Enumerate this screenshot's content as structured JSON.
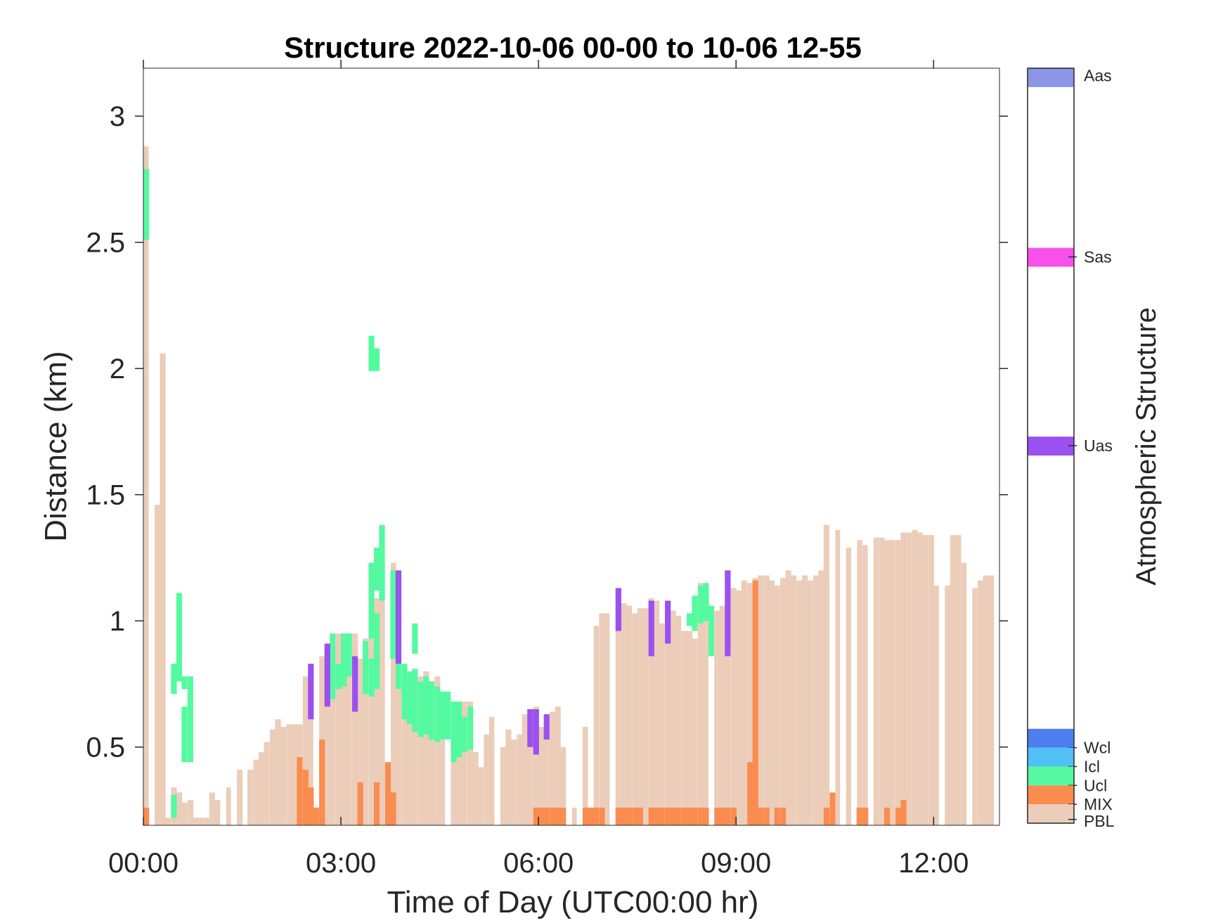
{
  "chart_data": {
    "type": "heatmap",
    "title": "Structure 2022-10-06 00-00 to 10-06 12-55",
    "xlabel": "Time of Day (UTC00:00 hr)",
    "ylabel": "Distance (km)",
    "colorbar_label": "Atmospheric Structure",
    "xlim": [
      0,
      13
    ],
    "ylim": [
      0.19,
      3.19
    ],
    "x_ticks": [
      0,
      3,
      6,
      9,
      12
    ],
    "x_tick_labels": [
      "00:00",
      "03:00",
      "06:00",
      "09:00",
      "12:00"
    ],
    "y_ticks": [
      0.5,
      1,
      1.5,
      2,
      2.5,
      3
    ],
    "y_tick_labels": [
      "0.5",
      "1",
      "1.5",
      "2",
      "2.5",
      "3"
    ],
    "grid": false,
    "legend": "colorbar-right",
    "colorbar": [
      {
        "label": "Aas",
        "color": "#8c96e6"
      },
      {
        "label": "Sas",
        "color": "#fa50eb"
      },
      {
        "label": "Uas",
        "color": "#9b50f0"
      },
      {
        "label": "Wcl",
        "color": "#4e7ef0"
      },
      {
        "label": "Icl",
        "color": "#50c0f5"
      },
      {
        "label": "Ucl",
        "color": "#55faa0"
      },
      {
        "label": "MIX",
        "color": "#fa8c50"
      },
      {
        "label": "PBL",
        "color": "#ebcdb9"
      }
    ],
    "bin_width_hr": 0.0833,
    "pbl_top_km": [
      [
        0.0,
        2.88
      ],
      [
        0.17,
        1.46
      ],
      [
        0.25,
        2.06
      ],
      [
        0.33,
        0.22
      ],
      [
        0.42,
        0.34
      ],
      [
        0.5,
        0.32
      ],
      [
        0.58,
        0.28
      ],
      [
        0.67,
        0.29
      ],
      [
        0.75,
        0.22
      ],
      [
        0.83,
        0.22
      ],
      [
        0.92,
        0.22
      ],
      [
        1.0,
        0.32
      ],
      [
        1.08,
        0.29
      ],
      [
        1.25,
        0.34
      ],
      [
        1.42,
        0.41
      ],
      [
        1.58,
        0.41
      ],
      [
        1.67,
        0.45
      ],
      [
        1.75,
        0.48
      ],
      [
        1.83,
        0.52
      ],
      [
        1.92,
        0.57
      ],
      [
        2.0,
        0.61
      ],
      [
        2.08,
        0.58
      ],
      [
        2.17,
        0.59
      ],
      [
        2.25,
        0.59
      ],
      [
        2.33,
        0.59
      ],
      [
        2.42,
        0.78
      ],
      [
        2.5,
        0.8
      ],
      [
        2.58,
        0.75
      ],
      [
        2.67,
        0.86
      ],
      [
        2.75,
        0.83
      ],
      [
        2.83,
        0.91
      ],
      [
        2.92,
        0.95
      ],
      [
        3.0,
        0.9
      ],
      [
        3.08,
        0.95
      ],
      [
        3.17,
        0.95
      ],
      [
        3.25,
        0.85
      ],
      [
        3.33,
        0.93
      ],
      [
        3.42,
        1.02
      ],
      [
        3.5,
        1.09
      ],
      [
        3.58,
        1.38
      ],
      [
        3.67,
        0.93
      ],
      [
        3.75,
        1.23
      ],
      [
        3.83,
        0.76
      ],
      [
        3.92,
        0.79
      ],
      [
        4.0,
        0.8
      ],
      [
        4.08,
        0.77
      ],
      [
        4.17,
        0.78
      ],
      [
        4.25,
        0.8
      ],
      [
        4.33,
        0.74
      ],
      [
        4.42,
        0.78
      ],
      [
        4.5,
        0.72
      ],
      [
        4.58,
        0.68
      ],
      [
        4.67,
        0.68
      ],
      [
        4.75,
        0.68
      ],
      [
        4.83,
        0.68
      ],
      [
        4.92,
        0.68
      ],
      [
        5.0,
        0.48
      ],
      [
        5.08,
        0.42
      ],
      [
        5.17,
        0.55
      ],
      [
        5.25,
        0.62
      ],
      [
        5.33,
        0.6
      ],
      [
        5.42,
        0.5
      ],
      [
        5.5,
        0.57
      ],
      [
        5.58,
        0.53
      ],
      [
        5.67,
        0.55
      ],
      [
        5.75,
        0.63
      ],
      [
        5.83,
        0.65
      ],
      [
        5.92,
        0.66
      ],
      [
        6.0,
        0.58
      ],
      [
        6.08,
        0.62
      ],
      [
        6.17,
        0.64
      ],
      [
        6.25,
        0.66
      ],
      [
        6.33,
        0.5
      ],
      [
        6.5,
        0.26
      ],
      [
        6.67,
        0.58
      ],
      [
        6.83,
        0.98
      ],
      [
        6.92,
        1.03
      ],
      [
        7.0,
        1.03
      ],
      [
        7.17,
        1.13
      ],
      [
        7.25,
        1.07
      ],
      [
        7.33,
        1.06
      ],
      [
        7.42,
        1.03
      ],
      [
        7.5,
        1.05
      ],
      [
        7.58,
        1.05
      ],
      [
        7.67,
        1.09
      ],
      [
        7.75,
        1.08
      ],
      [
        7.83,
        0.99
      ],
      [
        7.92,
        1.08
      ],
      [
        8.0,
        1.04
      ],
      [
        8.08,
        1.02
      ],
      [
        8.17,
        0.96
      ],
      [
        8.25,
        0.96
      ],
      [
        8.33,
        0.93
      ],
      [
        8.42,
        1.15
      ],
      [
        8.5,
        1.15
      ],
      [
        8.58,
        1.0
      ],
      [
        8.67,
        1.04
      ],
      [
        8.75,
        1.06
      ],
      [
        8.83,
        1.2
      ],
      [
        8.92,
        1.13
      ],
      [
        9.0,
        1.12
      ],
      [
        9.08,
        1.16
      ],
      [
        9.17,
        1.15
      ],
      [
        9.25,
        1.17
      ],
      [
        9.33,
        1.18
      ],
      [
        9.42,
        1.18
      ],
      [
        9.5,
        1.16
      ],
      [
        9.58,
        1.14
      ],
      [
        9.67,
        1.17
      ],
      [
        9.75,
        1.2
      ],
      [
        9.83,
        1.18
      ],
      [
        9.92,
        1.16
      ],
      [
        10.0,
        1.18
      ],
      [
        10.08,
        1.16
      ],
      [
        10.17,
        1.18
      ],
      [
        10.25,
        1.2
      ],
      [
        10.33,
        1.38
      ],
      [
        10.5,
        1.36
      ],
      [
        10.67,
        1.29
      ],
      [
        10.83,
        1.32
      ],
      [
        10.92,
        1.3
      ],
      [
        11.08,
        1.33
      ],
      [
        11.17,
        1.33
      ],
      [
        11.25,
        1.32
      ],
      [
        11.33,
        1.32
      ],
      [
        11.42,
        1.32
      ],
      [
        11.5,
        1.35
      ],
      [
        11.58,
        1.35
      ],
      [
        11.67,
        1.36
      ],
      [
        11.75,
        1.35
      ],
      [
        11.83,
        1.34
      ],
      [
        11.92,
        1.34
      ],
      [
        12.0,
        1.14
      ],
      [
        12.17,
        1.14
      ],
      [
        12.25,
        1.34
      ],
      [
        12.33,
        1.34
      ],
      [
        12.42,
        1.23
      ],
      [
        12.58,
        1.13
      ],
      [
        12.67,
        1.16
      ],
      [
        12.75,
        1.18
      ],
      [
        12.83,
        1.18
      ]
    ],
    "pbl_gaps_hr": [
      0.08,
      1.17,
      1.33,
      2.58,
      3.67,
      4.58,
      5.33,
      6.42,
      6.58,
      6.75,
      7.08,
      8.58,
      10.42,
      10.58,
      10.75,
      11.0,
      12.08,
      12.5
    ],
    "mix_cells": [
      [
        0.0,
        0.19,
        0.26
      ],
      [
        2.33,
        0.19,
        0.46
      ],
      [
        2.42,
        0.19,
        0.41
      ],
      [
        2.5,
        0.19,
        0.34
      ],
      [
        2.58,
        0.19,
        0.26
      ],
      [
        2.67,
        0.19,
        0.53
      ],
      [
        3.25,
        0.19,
        0.36
      ],
      [
        3.5,
        0.19,
        0.36
      ],
      [
        3.67,
        0.19,
        0.44
      ],
      [
        3.75,
        0.19,
        0.32
      ],
      [
        5.92,
        0.19,
        0.26
      ],
      [
        6.0,
        0.19,
        0.26
      ],
      [
        6.08,
        0.19,
        0.26
      ],
      [
        6.17,
        0.19,
        0.26
      ],
      [
        6.25,
        0.19,
        0.26
      ],
      [
        6.33,
        0.19,
        0.26
      ],
      [
        6.67,
        0.19,
        0.26
      ],
      [
        6.75,
        0.19,
        0.26
      ],
      [
        6.83,
        0.19,
        0.26
      ],
      [
        6.92,
        0.19,
        0.26
      ],
      [
        7.17,
        0.19,
        0.26
      ],
      [
        7.25,
        0.19,
        0.26
      ],
      [
        7.33,
        0.19,
        0.26
      ],
      [
        7.42,
        0.19,
        0.26
      ],
      [
        7.5,
        0.19,
        0.26
      ],
      [
        7.67,
        0.19,
        0.26
      ],
      [
        7.75,
        0.19,
        0.26
      ],
      [
        7.83,
        0.19,
        0.26
      ],
      [
        7.92,
        0.19,
        0.26
      ],
      [
        8.0,
        0.19,
        0.26
      ],
      [
        8.08,
        0.19,
        0.26
      ],
      [
        8.17,
        0.19,
        0.26
      ],
      [
        8.25,
        0.19,
        0.26
      ],
      [
        8.33,
        0.19,
        0.26
      ],
      [
        8.42,
        0.19,
        0.26
      ],
      [
        8.5,
        0.19,
        0.26
      ],
      [
        8.67,
        0.19,
        0.26
      ],
      [
        8.75,
        0.19,
        0.26
      ],
      [
        8.83,
        0.19,
        0.26
      ],
      [
        8.92,
        0.19,
        0.26
      ],
      [
        9.17,
        0.19,
        0.44
      ],
      [
        9.25,
        0.19,
        1.16
      ],
      [
        9.33,
        0.19,
        0.26
      ],
      [
        9.42,
        0.19,
        0.26
      ],
      [
        9.58,
        0.19,
        0.26
      ],
      [
        9.67,
        0.19,
        0.26
      ],
      [
        10.33,
        0.19,
        0.26
      ],
      [
        10.42,
        0.19,
        0.32
      ],
      [
        10.83,
        0.19,
        0.26
      ],
      [
        10.92,
        0.19,
        0.26
      ],
      [
        11.25,
        0.19,
        0.26
      ],
      [
        11.42,
        0.19,
        0.26
      ],
      [
        11.5,
        0.19,
        0.29
      ]
    ],
    "ucl_cells": [
      [
        0.0,
        2.51,
        2.79
      ],
      [
        0.42,
        0.71,
        0.83
      ],
      [
        0.42,
        0.22,
        0.31
      ],
      [
        0.5,
        0.76,
        1.11
      ],
      [
        0.58,
        0.73,
        0.78
      ],
      [
        0.58,
        0.44,
        0.66
      ],
      [
        0.67,
        0.44,
        0.78
      ],
      [
        2.83,
        0.69,
        0.95
      ],
      [
        2.92,
        0.73,
        0.83
      ],
      [
        3.0,
        0.74,
        0.95
      ],
      [
        3.08,
        0.78,
        0.95
      ],
      [
        3.17,
        0.68,
        0.86
      ],
      [
        3.33,
        0.71,
        0.92
      ],
      [
        3.42,
        0.7,
        0.85
      ],
      [
        3.42,
        1.99,
        2.13
      ],
      [
        3.5,
        0.73,
        1.03
      ],
      [
        3.5,
        1.99,
        2.08
      ],
      [
        3.42,
        0.93,
        1.23
      ],
      [
        3.5,
        1.12,
        1.29
      ],
      [
        3.58,
        1.08,
        1.38
      ],
      [
        3.75,
        0.85,
        1.2
      ],
      [
        3.83,
        0.73,
        0.85
      ],
      [
        3.92,
        0.61,
        0.83
      ],
      [
        4.0,
        0.59,
        0.8
      ],
      [
        4.08,
        0.56,
        0.81
      ],
      [
        4.17,
        0.54,
        0.76
      ],
      [
        4.25,
        0.55,
        0.78
      ],
      [
        4.33,
        0.53,
        0.76
      ],
      [
        4.42,
        0.52,
        0.74
      ],
      [
        4.5,
        0.53,
        0.72
      ],
      [
        4.58,
        0.53,
        0.72
      ],
      [
        4.67,
        0.44,
        0.68
      ],
      [
        4.75,
        0.46,
        0.68
      ],
      [
        4.83,
        0.48,
        0.62
      ],
      [
        4.92,
        0.49,
        0.66
      ],
      [
        4.08,
        0.87,
        0.99
      ],
      [
        8.25,
        0.98,
        1.03
      ],
      [
        8.33,
        0.96,
        1.1
      ],
      [
        8.42,
        0.99,
        1.14
      ],
      [
        8.5,
        1.0,
        1.15
      ],
      [
        8.58,
        0.86,
        1.06
      ]
    ],
    "uas_cells": [
      [
        2.5,
        0.61,
        0.83
      ],
      [
        2.75,
        0.66,
        0.91
      ],
      [
        3.17,
        0.64,
        0.86
      ],
      [
        3.83,
        0.83,
        1.2
      ],
      [
        5.83,
        0.5,
        0.65
      ],
      [
        5.92,
        0.47,
        0.65
      ],
      [
        6.08,
        0.53,
        0.63
      ],
      [
        7.17,
        0.96,
        1.13
      ],
      [
        7.67,
        0.86,
        1.08
      ],
      [
        7.92,
        0.91,
        1.08
      ],
      [
        8.83,
        0.86,
        1.2
      ]
    ]
  }
}
